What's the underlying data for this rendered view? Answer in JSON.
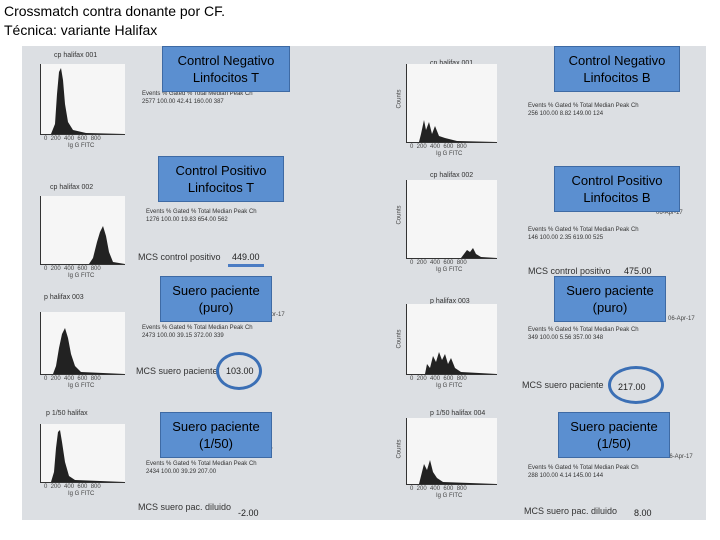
{
  "title": {
    "line1": "Crossmatch contra donante por CF.",
    "line2": "Técnica: variante Halifax"
  },
  "labels": {
    "neg_t": [
      "Control Negativo",
      "Linfocitos T"
    ],
    "neg_b": [
      "Control Negativo",
      "Linfocitos B"
    ],
    "pos_t": [
      "Control Positivo",
      "Linfocitos T"
    ],
    "pos_b": [
      "Control Positivo",
      "Linfocitos B"
    ],
    "puro_t": [
      "Suero paciente",
      "(puro)"
    ],
    "puro_b": [
      "Suero paciente",
      "(puro)"
    ],
    "dil_t": [
      "Suero paciente",
      "(1/50)"
    ],
    "dil_b": [
      "Suero paciente",
      "(1/50)"
    ]
  },
  "doc": {
    "r1l_name": "cp halifax 001",
    "r1r_name": "cn halifax 001",
    "r2l_name": "cp halifax 002",
    "r2r_name": "cp halifax 002",
    "r3l_name": "p halifax 003",
    "r3r_name": "p halifax 003",
    "r4l_name": "p 1/50 halifax",
    "r4r_name": "p 1/50 halifax 004",
    "xaxis": "Ig G FITC",
    "yaxis": "Counts",
    "stats_header": "Events  % Gated  % Total  Median  Peak Ch",
    "r1l_stats": "2577   100.00   42.41   160.00   387",
    "r1r_stats": "256   100.00   8.82   149.00   124",
    "r2l_stats": "1276   100.00   19.83   654.00   562",
    "r2r_stats": "146   100.00   2.35   619.00   525",
    "r3l_stats": "2473   100.00   39.15   372.00   339",
    "r3r_stats": "349   100.00   5.56   357.00   348",
    "r4l_stats": "2434   100.00   39.29   207.00   ",
    "r4r_stats": "288   100.00   4.14   145.00   144",
    "date": "06-Apr-17",
    "mcs_pos": "MCS control positivo",
    "mcs_pos_t": "449.00",
    "mcs_pos_b": "475.00",
    "mcs_puro": "MCS suero paciente",
    "mcs_puro_t": "103.00",
    "mcs_puro_b": "217.00",
    "mcs_dil": "MCS suero pac. diluido",
    "mcs_dil_t": "-2.00",
    "mcs_dil_b": "8.00"
  }
}
